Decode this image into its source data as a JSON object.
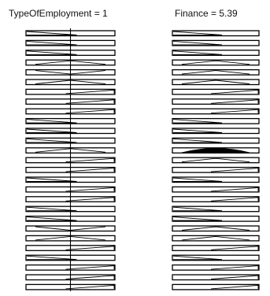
{
  "panels": [
    {
      "title": "TypeOfEmployment = 1",
      "icon": "collapsible-pivot-tree",
      "rows": [
        "left-rise",
        "left-rise",
        "left-rise",
        "center-v",
        "center-x",
        "center-v",
        "right-rise",
        "right-rise",
        "right-rise",
        "left-rise",
        "left-rise",
        "left-rise",
        "center-v",
        "right-rise",
        "right-rise",
        "left-rise",
        "right-rise",
        "right-rise",
        "left-rise",
        "left-rise",
        "center-x",
        "center-v",
        "right-rise",
        "left-rise",
        "right-rise",
        "right-rise",
        "right-rise"
      ]
    },
    {
      "title": "Finance = 5.39",
      "icon": "collapsible-pivot-tree",
      "rows": [
        "left-rise",
        "left-rise",
        "left-rise",
        "center-v",
        "center-v",
        "center-v",
        "right-rise",
        "right-rise",
        "right-rise",
        "left-rise",
        "left-rise",
        "left-rise",
        "center-filled",
        "center-v",
        "right-rise",
        "left-rise",
        "right-rise",
        "right-rise",
        "left-rise",
        "left-rise",
        "center-v",
        "center-v",
        "right-rise",
        "left-rise",
        "right-rise",
        "right-rise",
        "right-rise"
      ]
    }
  ]
}
